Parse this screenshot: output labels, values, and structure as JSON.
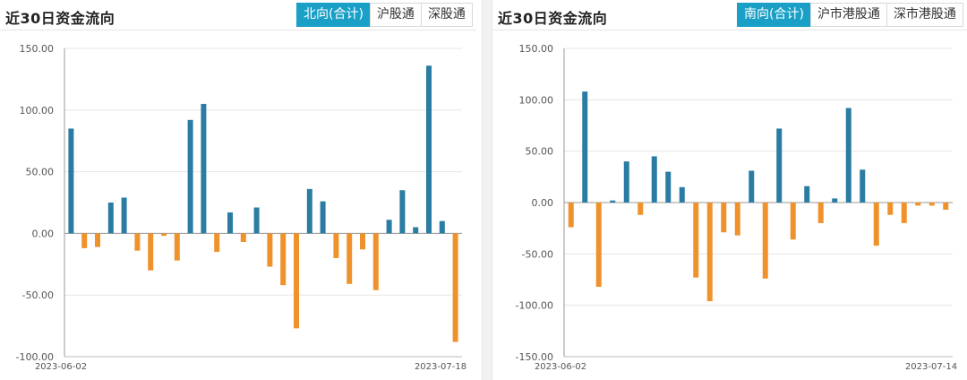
{
  "left_panel": {
    "title": "近30日资金流向",
    "tabs": [
      {
        "label": "北向(合计)",
        "active": true
      },
      {
        "label": "沪股通",
        "active": false
      },
      {
        "label": "深股通",
        "active": false
      }
    ]
  },
  "right_panel": {
    "title": "近30日资金流向",
    "tabs": [
      {
        "label": "南向(合计)",
        "active": true
      },
      {
        "label": "沪市港股通",
        "active": false
      },
      {
        "label": "深市港股通",
        "active": false
      }
    ]
  },
  "colors": {
    "positive": "#2b7ca3",
    "negative": "#f0922b",
    "active_tab": "#1aa0c7",
    "grid": "#e6e6e6"
  },
  "chart_data": [
    {
      "type": "bar",
      "title": "近30日资金流向",
      "ylim": [
        -100,
        150
      ],
      "yticks": [
        "150.00",
        "100.00",
        "50.00",
        "0.00",
        "-50.00",
        "-100.00"
      ],
      "ytick_values": [
        150,
        100,
        50,
        0,
        -50,
        -100
      ],
      "x_start_label": "2023-06-02",
      "x_end_label": "2023-07-18",
      "values": [
        85,
        -12,
        -11,
        25,
        29,
        -14,
        -30,
        -2,
        -22,
        92,
        105,
        -15,
        17,
        -7,
        21,
        -27,
        -42,
        -77,
        36,
        26,
        -20,
        -41,
        -13,
        -46,
        11,
        35,
        5,
        136,
        10,
        -88
      ]
    },
    {
      "type": "bar",
      "title": "近30日资金流向",
      "ylim": [
        -150,
        150
      ],
      "yticks": [
        "150.00",
        "100.00",
        "50.00",
        "0.00",
        "-50.00",
        "-100.00",
        "-150.00"
      ],
      "ytick_values": [
        150,
        100,
        50,
        0,
        -50,
        -100,
        -150
      ],
      "x_start_label": "2023-06-02",
      "x_end_label": "2023-07-14",
      "values": [
        -24,
        108,
        -82,
        2,
        40,
        -12,
        45,
        30,
        15,
        -73,
        -96,
        -29,
        -32,
        31,
        -74,
        72,
        -36,
        16,
        -20,
        4,
        92,
        32,
        -42,
        -12,
        -20,
        -3,
        -3,
        -7
      ]
    }
  ]
}
